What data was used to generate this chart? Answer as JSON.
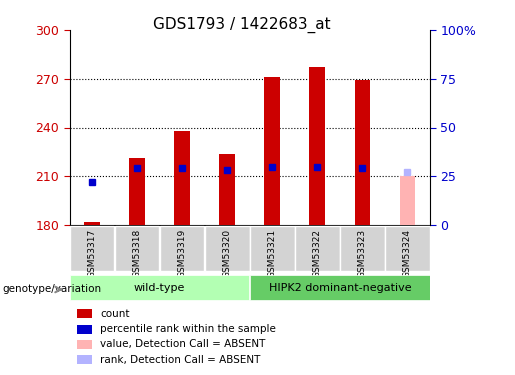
{
  "title": "GDS1793 / 1422683_at",
  "samples": [
    "GSM53317",
    "GSM53318",
    "GSM53319",
    "GSM53320",
    "GSM53321",
    "GSM53322",
    "GSM53323",
    "GSM53324"
  ],
  "bar_values": [
    182,
    221,
    238,
    224,
    271,
    277,
    269,
    210
  ],
  "bar_colors": [
    "#cc0000",
    "#cc0000",
    "#cc0000",
    "#cc0000",
    "#cc0000",
    "#cc0000",
    "#cc0000",
    "#ffb3b3"
  ],
  "rank_values": [
    22,
    29,
    29,
    28,
    30,
    30,
    29,
    27
  ],
  "rank_absent": [
    false,
    false,
    false,
    false,
    false,
    false,
    false,
    true
  ],
  "ylim_left": [
    180,
    300
  ],
  "ylim_right": [
    0,
    100
  ],
  "yticks_left": [
    180,
    210,
    240,
    270,
    300
  ],
  "yticks_right": [
    0,
    25,
    50,
    75,
    100
  ],
  "yticklabels_right": [
    "0",
    "25",
    "50",
    "75",
    "100%"
  ],
  "bar_bottom": 180,
  "left_axis_color": "#cc0000",
  "right_axis_color": "#0000cc",
  "legend_colors": [
    "#cc0000",
    "#0000cc",
    "#ffb3b3",
    "#b3b3ff"
  ],
  "legend_labels": [
    "count",
    "percentile rank within the sample",
    "value, Detection Call = ABSENT",
    "rank, Detection Call = ABSENT"
  ]
}
